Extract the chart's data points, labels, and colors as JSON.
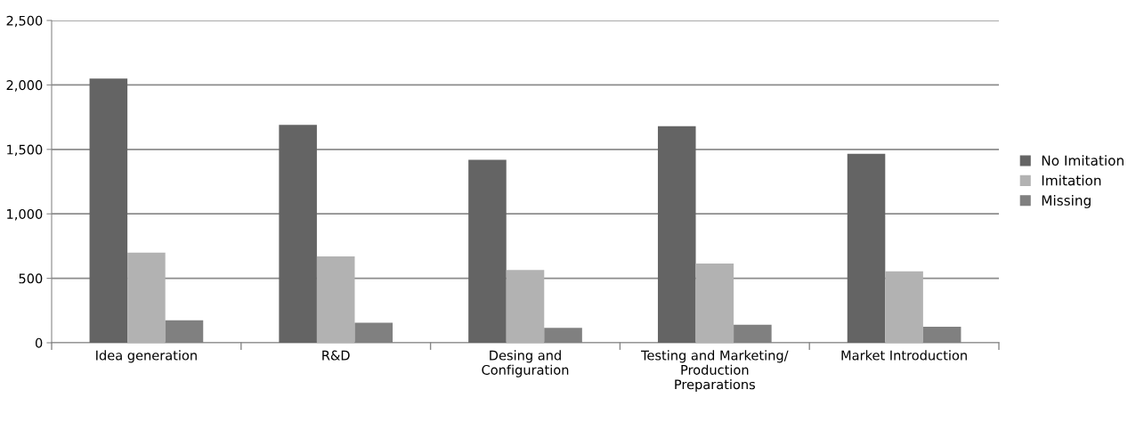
{
  "chart_data": {
    "type": "bar",
    "categories": [
      "Idea generation",
      "R&D",
      "Desing and Configuration",
      "Testing and Marketing/ Production Preparations",
      "Market Introduction"
    ],
    "series": [
      {
        "name": "No Imitation",
        "color": "#646464",
        "values": [
          2050,
          1690,
          1420,
          1680,
          1465
        ]
      },
      {
        "name": "Imitation",
        "color": "#b2b2b2",
        "values": [
          700,
          670,
          565,
          615,
          555
        ]
      },
      {
        "name": "Missing",
        "color": "#808080",
        "values": [
          175,
          155,
          115,
          140,
          125
        ]
      }
    ],
    "ylim": [
      0,
      2500
    ],
    "yticks": [
      {
        "value": 0,
        "label": "0"
      },
      {
        "value": 500,
        "label": "500"
      },
      {
        "value": 1000,
        "label": "1,000"
      },
      {
        "value": 1500,
        "label": "1,500"
      },
      {
        "value": 2000,
        "label": "2,000"
      },
      {
        "value": 2500,
        "label": "2,500"
      }
    ],
    "grid": "y",
    "legend": "right"
  }
}
